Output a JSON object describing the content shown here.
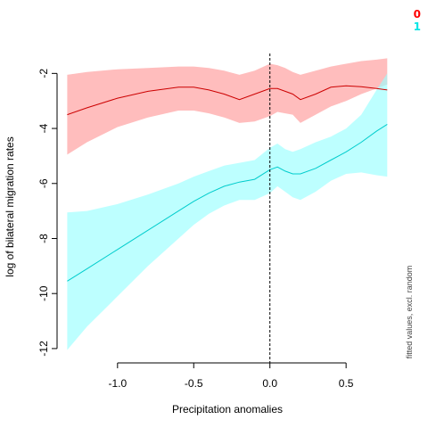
{
  "chart_data": {
    "type": "line",
    "xlabel": "Precipitation anomalies",
    "ylabel": "log of bilateral migration rates",
    "side_note": "fitted values, excl. random",
    "xlim": [
      -1.35,
      0.78
    ],
    "ylim": [
      -12.1,
      -1.6
    ],
    "x_ticks": [
      {
        "value": -1.0,
        "label": "-1.0"
      },
      {
        "value": -0.5,
        "label": "-0.5"
      },
      {
        "value": 0.0,
        "label": "0.0"
      },
      {
        "value": 0.5,
        "label": "0.5"
      }
    ],
    "y_ticks": [
      {
        "value": -2,
        "label": "-2"
      },
      {
        "value": -4,
        "label": "-4"
      },
      {
        "value": -6,
        "label": "-6"
      },
      {
        "value": -8,
        "label": "-8"
      },
      {
        "value": -10,
        "label": "-10"
      },
      {
        "value": -12,
        "label": "-12"
      }
    ],
    "vline_x": 0.0,
    "legend": [
      {
        "label": "0",
        "color": "#ff0000"
      },
      {
        "label": "1",
        "color": "#00e5e5"
      }
    ],
    "x": [
      -1.33,
      -1.2,
      -1.0,
      -0.8,
      -0.6,
      -0.5,
      -0.4,
      -0.3,
      -0.2,
      -0.1,
      0.0,
      0.05,
      0.1,
      0.15,
      0.2,
      0.3,
      0.4,
      0.5,
      0.6,
      0.7,
      0.77
    ],
    "series": [
      {
        "name": "0",
        "line_color": "#cc0000",
        "band_color": "#ff9999",
        "values": [
          -3.5,
          -3.25,
          -2.9,
          -2.65,
          -2.5,
          -2.5,
          -2.6,
          -2.75,
          -2.95,
          -2.75,
          -2.55,
          -2.55,
          -2.65,
          -2.75,
          -2.95,
          -2.75,
          -2.5,
          -2.45,
          -2.48,
          -2.55,
          -2.6
        ],
        "lower": [
          -4.95,
          -4.5,
          -3.95,
          -3.6,
          -3.35,
          -3.35,
          -3.45,
          -3.6,
          -3.8,
          -3.75,
          -3.55,
          -3.4,
          -3.45,
          -3.5,
          -3.8,
          -3.5,
          -3.2,
          -3.0,
          -2.75,
          -2.55,
          -2.4
        ],
        "upper": [
          -2.05,
          -1.95,
          -1.85,
          -1.8,
          -1.75,
          -1.75,
          -1.8,
          -1.9,
          -2.05,
          -1.9,
          -1.65,
          -1.7,
          -1.8,
          -1.95,
          -2.05,
          -1.9,
          -1.75,
          -1.65,
          -1.55,
          -1.5,
          -1.45
        ]
      },
      {
        "name": "1",
        "line_color": "#00cccc",
        "band_color": "#99ffff",
        "values": [
          -9.55,
          -9.1,
          -8.4,
          -7.7,
          -7.0,
          -6.65,
          -6.35,
          -6.1,
          -5.95,
          -5.85,
          -5.5,
          -5.4,
          -5.55,
          -5.65,
          -5.65,
          -5.45,
          -5.15,
          -4.85,
          -4.5,
          -4.1,
          -3.85
        ],
        "lower": [
          -12.05,
          -11.2,
          -10.1,
          -9.0,
          -8.0,
          -7.5,
          -7.1,
          -6.8,
          -6.6,
          -6.6,
          -6.35,
          -6.1,
          -6.3,
          -6.5,
          -6.6,
          -6.3,
          -5.9,
          -5.65,
          -5.6,
          -5.7,
          -5.75
        ],
        "upper": [
          -7.05,
          -7.0,
          -6.75,
          -6.4,
          -6.0,
          -5.75,
          -5.55,
          -5.35,
          -5.25,
          -5.15,
          -4.7,
          -4.55,
          -4.75,
          -4.85,
          -4.75,
          -4.5,
          -4.3,
          -4.0,
          -3.5,
          -2.6,
          -2.0
        ]
      }
    ]
  }
}
